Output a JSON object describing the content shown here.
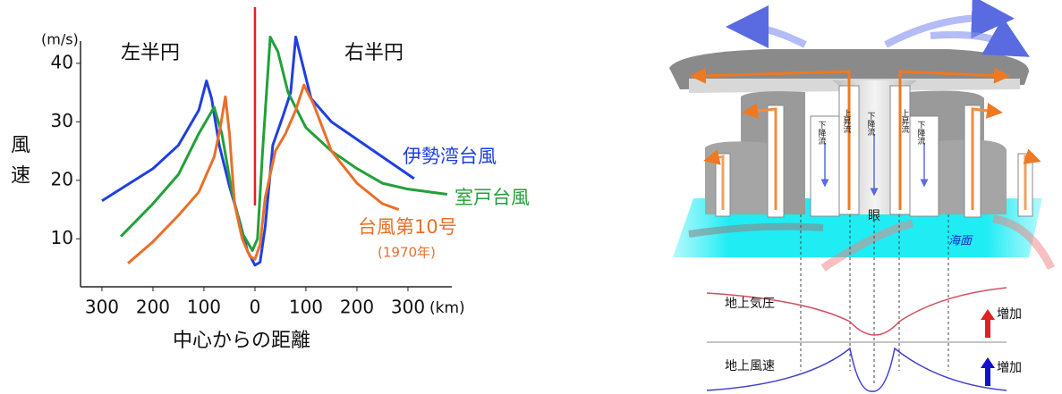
{
  "chart_data": {
    "type": "line",
    "y_label": "風速",
    "y_unit": "(m/s)",
    "x_label": "中心からの距離",
    "x_unit": "(km)",
    "annotations": [
      "左半円",
      "右半円",
      "(1970年)"
    ],
    "xlim": [
      -342,
      386
    ],
    "ylim": [
      1.8,
      43.8
    ],
    "xticks": [
      {
        "value": -300,
        "label": "300"
      },
      {
        "value": -200,
        "label": "200"
      },
      {
        "value": -100,
        "label": "100"
      },
      0,
      100,
      200,
      300
    ],
    "yticks": [
      10,
      20,
      30,
      40
    ],
    "vline": {
      "value": 0,
      "color": "#e02020"
    },
    "series": [
      {
        "name": "伊勢湾台風",
        "color": "#1f3fe0",
        "x": [
          -300,
          -200,
          -150,
          -110,
          -95,
          -85,
          -70,
          -50,
          -30,
          -15,
          0,
          10,
          20,
          35,
          55,
          70,
          80,
          90,
          110,
          150,
          200,
          250,
          312
        ],
        "values": [
          16.5,
          22,
          26,
          32,
          37,
          34,
          26,
          19,
          13,
          8,
          5.5,
          6,
          12,
          26,
          31,
          35,
          44.5,
          41,
          34,
          30,
          27,
          24,
          20.3
        ]
      },
      {
        "name": "室戸台風",
        "color": "#22a03a",
        "x": [
          -263,
          -200,
          -150,
          -110,
          -80,
          -65,
          -45,
          -25,
          -5,
          5,
          15,
          25,
          30,
          45,
          65,
          100,
          150,
          200,
          250,
          300,
          377
        ],
        "values": [
          10.4,
          16,
          21,
          28,
          32.5,
          28,
          18,
          11,
          8,
          10,
          25,
          38,
          44.5,
          42,
          35,
          29,
          25,
          22,
          19.5,
          18.5,
          17.6
        ]
      },
      {
        "name": "台風第10号",
        "color": "#e8702a",
        "x": [
          -249,
          -200,
          -150,
          -110,
          -80,
          -68,
          -58,
          -50,
          -40,
          -25,
          -10,
          0,
          10,
          20,
          40,
          60,
          80,
          96,
          115,
          150,
          200,
          250,
          282
        ],
        "values": [
          5.8,
          9.5,
          14,
          18,
          24,
          29,
          34.3,
          28,
          16,
          10,
          7,
          6.5,
          9,
          17,
          25,
          28,
          32,
          36.3,
          33,
          25,
          19.5,
          16,
          15
        ]
      }
    ]
  },
  "diagram": {
    "updraft": [
      "上昇流",
      "上昇流"
    ],
    "downdraft": [
      "下降流",
      "下降流",
      "下降流"
    ],
    "eye": "眼",
    "sea": "海面",
    "pressure": "地上気圧",
    "wind": "地上風速",
    "increase": [
      "増加",
      "増加"
    ]
  }
}
